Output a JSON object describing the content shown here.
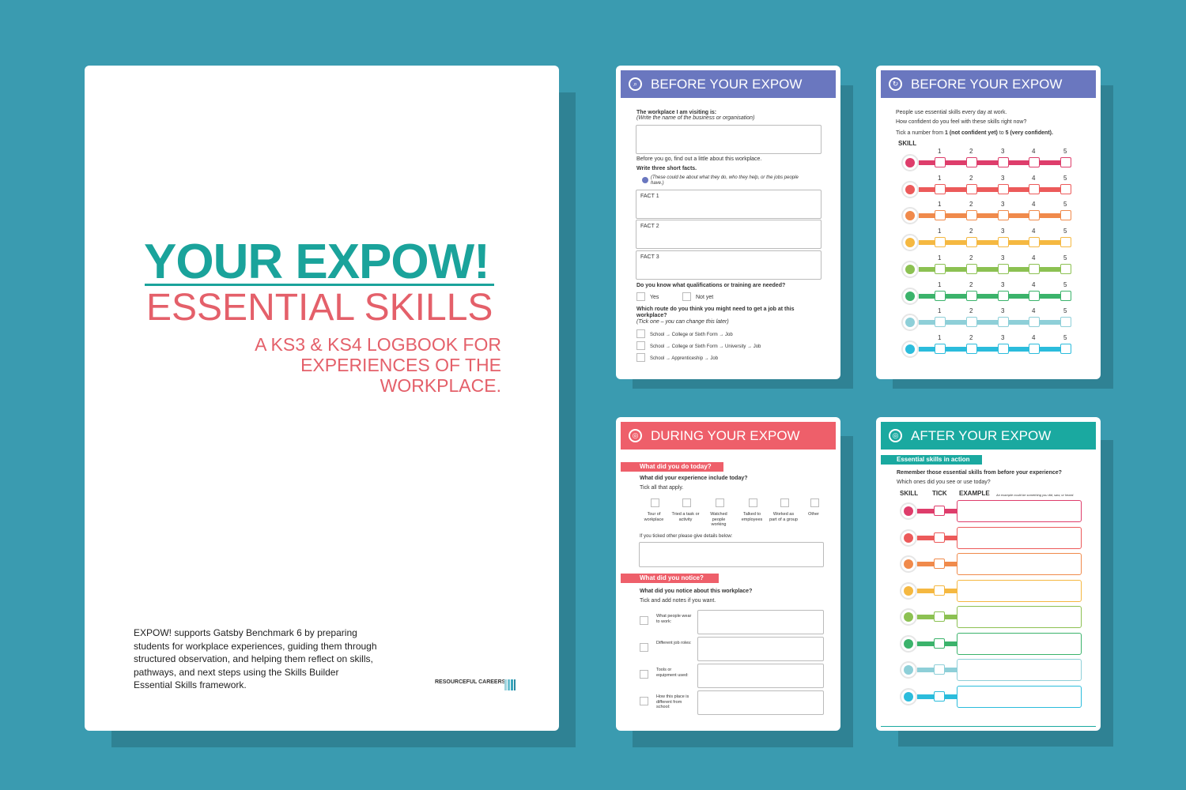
{
  "cover": {
    "title_line1": "YOUR EXPOW!",
    "title_line2": "ESSENTIAL SKILLS",
    "subtitle": "A KS3 & KS4 LOGBOOK FOR EXPERIENCES OF THE WORKPLACE.",
    "blurb": "EXPOW! supports Gatsby Benchmark 6 by preparing students for workplace experiences, guiding them through structured observation, and helping them reflect on skills, pathways, and next steps using the Skills Builder Essential Skills framework.",
    "logo_text": "RESOURCEFUL CAREERS"
  },
  "page1": {
    "header": "BEFORE YOUR EXPOW",
    "header_color": "#6a77bf",
    "workplace_label": "The workplace I am visiting is:",
    "workplace_hint": "(Write the name of the business or organisation)",
    "before_go": "Before you go, find out a little about this workplace.",
    "facts_label": "Write three short facts.",
    "facts_hint": "(These could be about what they do, who they help, or the jobs people have.)",
    "facts": [
      "FACT 1",
      "FACT 2",
      "FACT 3"
    ],
    "qual_q": "Do you know what qualifications or training are needed?",
    "qual_opts": [
      "Yes",
      "Not yet"
    ],
    "route_q": "Which route do you think you might need to get a job at this workplace?",
    "route_hint": "(Tick one – you can change this later)",
    "routes": [
      "School → College or Sixth Form → Job",
      "School → College or Sixth Form → University → Job",
      "School → Apprenticeship → Job"
    ]
  },
  "page2": {
    "header": "BEFORE YOUR EXPOW",
    "header_color": "#6a77bf",
    "intro1": "People use essential skills every day at work.",
    "intro2": "How confident do you feel with these skills right now?",
    "tick_pre": "Tick a number from ",
    "tick_1": "1",
    "tick_mid1": " (not confident yet)",
    "tick_to": " to ",
    "tick_5": "5",
    "tick_mid2": " (very confident).",
    "skill_label": "SKILL",
    "scale": [
      "1",
      "2",
      "3",
      "4",
      "5"
    ],
    "skill_colors": [
      "#de3d6b",
      "#ec5a5a",
      "#f08a4b",
      "#f5b841",
      "#8cc152",
      "#3bb36b",
      "#8ecfd8",
      "#2bbcdc"
    ]
  },
  "page3": {
    "header": "DURING YOUR EXPOW",
    "header_color": "#ee5f6a",
    "section1": "What did you do today?",
    "q1": "What did your experience include today?",
    "q1_hint": "Tick all that apply.",
    "activities": [
      "Tour of workplace",
      "Tried a task or activity",
      "Watched people working",
      "Talked to employees",
      "Worked as part of a group",
      "Other"
    ],
    "other_hint": "If you ticked other please give details below:",
    "section2": "What did you notice?",
    "q2": "What did you notice about this workplace?",
    "q2_hint": "Tick and add notes if you want.",
    "notices": [
      "What people wear to work:",
      "Different job roles:",
      "Tools or equipment used:",
      "How this place is different from school:"
    ]
  },
  "page4": {
    "header": "AFTER YOUR EXPOW",
    "header_color": "#1aa9a0",
    "section": "Essential skills in action",
    "q": "Remember those essential skills from before your experience?",
    "q_hint": "Which ones did you see or use today?",
    "col_skill": "SKILL",
    "col_tick": "TICK",
    "col_example": "EXAMPLE",
    "example_hint": "An example could be something you did, saw, or heard."
  }
}
